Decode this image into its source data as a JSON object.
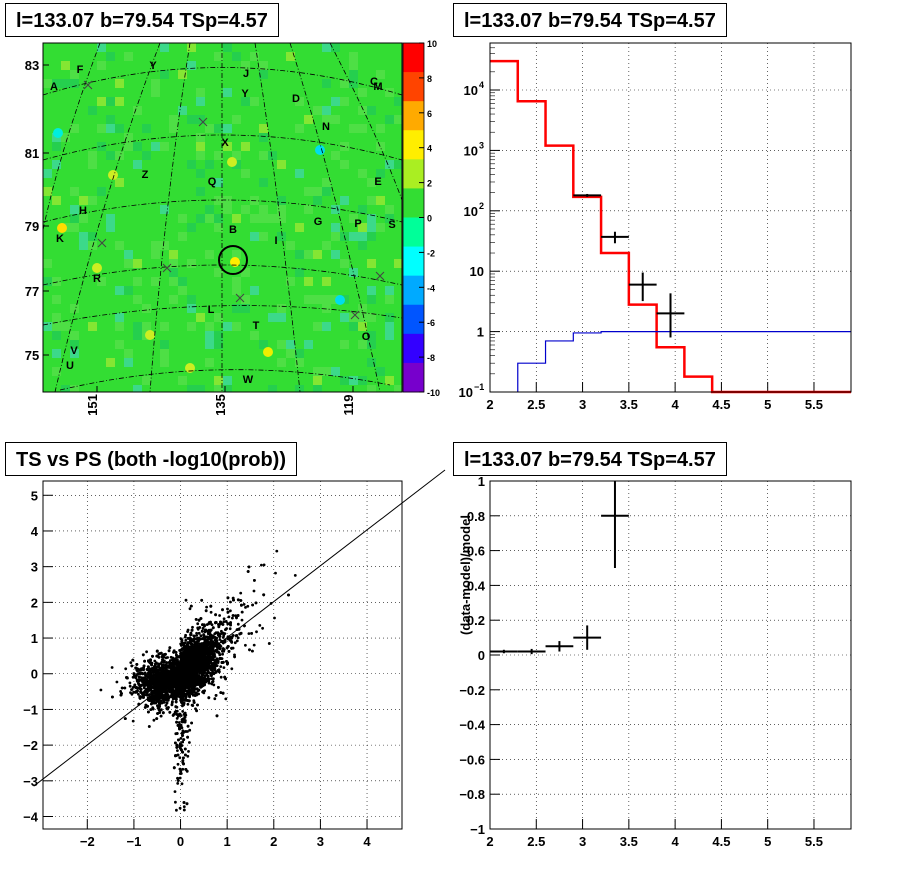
{
  "titles": {
    "sky_map": "l=133.07 b=79.54 TSp=4.57",
    "spectrum": "l=133.07 b=79.54 TSp=4.57",
    "ts_vs_ps": "TS vs PS (both -log10(prob))",
    "residuals": "l=133.07 b=79.54 TSp=4.57"
  },
  "colors": {
    "model_line": "#ff0000",
    "secondary_model_line": "#0000cc",
    "data_points": "#000000",
    "map_background": "#33dd33",
    "grid": "#000000"
  },
  "chart_data": [
    {
      "type": "heatmap",
      "title": "l=133.07 b=79.54 TSp=4.57",
      "x_ticks": [
        "151",
        "135",
        "119"
      ],
      "y_ticks": [
        "83",
        "81",
        "79",
        "77",
        "75"
      ],
      "colorbar": {
        "range": [
          -10,
          10
        ],
        "ticks": [
          "10",
          "8",
          "6",
          "4",
          "2",
          "0",
          "-2",
          "-4",
          "-6",
          "-8",
          "-10"
        ],
        "palette": [
          "#7700cc",
          "#3300ff",
          "#0055ff",
          "#00aaff",
          "#00ffff",
          "#00ff99",
          "#33dd33",
          "#aaee22",
          "#ffee00",
          "#ffaa00",
          "#ff4400",
          "#ff0000"
        ]
      },
      "source_labels": [
        "A",
        "F",
        "Y",
        "J",
        "C",
        "M",
        "Y",
        "D",
        "N",
        "X",
        "Z",
        "Q",
        "E",
        "H",
        "K",
        "B",
        "I",
        "G",
        "P",
        "S",
        "R",
        "L",
        "T",
        "O",
        "V",
        "U",
        "W"
      ],
      "highlighted_source": "B"
    },
    {
      "type": "line",
      "title": "l=133.07 b=79.54 TSp=4.57",
      "x_ticks": [
        "2",
        "2.5",
        "3",
        "3.5",
        "4",
        "4.5",
        "5",
        "5.5"
      ],
      "y_ticks": [
        "10^-1",
        "1",
        "10",
        "10^2",
        "10^3",
        "10^4"
      ],
      "log_y": true,
      "xlim": [
        2,
        5.9
      ],
      "ylim": [
        0.1,
        60000
      ],
      "grid": true,
      "series": [
        {
          "style": "step-red",
          "bin_edges": [
            2.0,
            2.3,
            2.6,
            2.9,
            3.2,
            3.5,
            3.8,
            4.1,
            4.4,
            5.9
          ],
          "values": [
            30000,
            6500,
            1200,
            170,
            20,
            2.8,
            0.55,
            0.18,
            0.1
          ]
        },
        {
          "style": "step-blue",
          "bin_edges": [
            2.3,
            2.6,
            2.9,
            3.2,
            5.9
          ],
          "values": [
            0.3,
            0.7,
            0.95,
            1.0
          ]
        },
        {
          "style": "points-with-errors",
          "x": [
            3.05,
            3.35,
            3.65,
            3.95
          ],
          "y": [
            180,
            37,
            6,
            2
          ],
          "xerr": [
            0.15,
            0.15,
            0.15,
            0.15
          ],
          "yerr_low": [
            10,
            8,
            2.8,
            1.2
          ],
          "yerr_high": [
            10,
            8,
            3.5,
            2.3
          ]
        }
      ]
    },
    {
      "type": "scatter",
      "title": "TS vs PS (both -log10(prob))",
      "x_ticks": [
        "−2",
        "−1",
        "0",
        "1",
        "2",
        "3",
        "4"
      ],
      "y_ticks": [
        "−4",
        "−3",
        "−2",
        "−1",
        "0",
        "1",
        "2",
        "3",
        "4",
        "5"
      ],
      "xlim": [
        -2.95,
        4.75
      ],
      "ylim": [
        -4.35,
        5.4
      ],
      "grid": true,
      "reference_line": {
        "slope": 1,
        "intercept": 0
      },
      "n_points": 7000
    },
    {
      "type": "scatter",
      "title": "l=133.07 b=79.54 TSp=4.57",
      "ylabel": "(data-model)/model",
      "x_ticks": [
        "2",
        "2.5",
        "3",
        "3.5",
        "4",
        "4.5",
        "5",
        "5.5"
      ],
      "y_ticks": [
        "−1",
        "−0.8",
        "−0.6",
        "−0.4",
        "−0.2",
        "0",
        "0.2",
        "0.4",
        "0.6",
        "0.8",
        "1"
      ],
      "xlim": [
        2,
        5.9
      ],
      "ylim": [
        -1,
        1
      ],
      "grid": true,
      "points": {
        "x": [
          2.15,
          2.45,
          2.75,
          3.05,
          3.35
        ],
        "y": [
          0.02,
          0.02,
          0.05,
          0.1,
          0.8
        ],
        "xerr": [
          0.15,
          0.15,
          0.15,
          0.15,
          0.15
        ],
        "yerr": [
          0.01,
          0.015,
          0.03,
          0.07,
          0.3
        ]
      }
    }
  ]
}
